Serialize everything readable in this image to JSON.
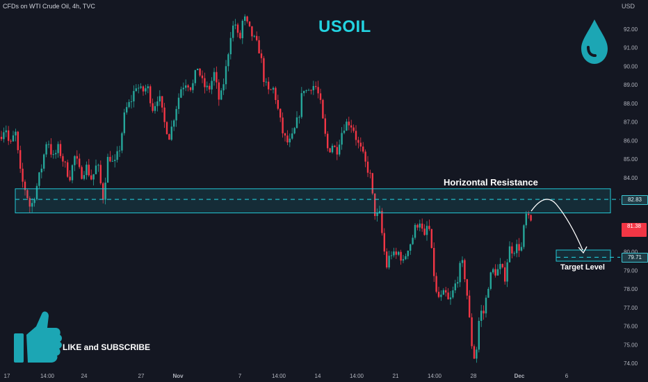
{
  "header": {
    "symbol_title": "CFDs on WTI Crude Oil, 4h, TVC",
    "currency": "USD"
  },
  "annotations": {
    "main_title": "USOIL",
    "resistance_label": "Horizontal Resistance",
    "target_label": "Target Level",
    "subscribe_label": "LIKE and SUBSCRIBE"
  },
  "price_tags": {
    "resistance": "82.83",
    "current_top": "81.38",
    "current_bottom": "",
    "target": "79.71"
  },
  "colors": {
    "background": "#141722",
    "up": "#26a69a",
    "down": "#f23645",
    "zone": "#23c8d6",
    "accent": "#23d3e1"
  },
  "icons": [
    "oil-drop-icon",
    "thumbs-up-icon"
  ],
  "chart_data": {
    "type": "candlestick",
    "title": "USOIL",
    "xlabel": "",
    "ylabel": "USD",
    "ylim": [
      73.7,
      93.4
    ],
    "grid": false,
    "y_ticks": [
      74.0,
      75.0,
      76.0,
      77.0,
      78.0,
      79.0,
      80.0,
      81.0,
      82.0,
      83.0,
      84.0,
      85.0,
      86.0,
      87.0,
      88.0,
      89.0,
      90.0,
      91.0,
      92.0
    ],
    "y_tick_labels": [
      "74.00",
      "75.00",
      "76.00",
      "77.00",
      "78.00",
      "79.00",
      "80.00",
      "",
      "",
      "",
      "84.00",
      "85.00",
      "86.00",
      "87.00",
      "88.00",
      "89.00",
      "90.00",
      "91.00",
      "92.00"
    ],
    "x_tick_labels": [
      "17",
      "14:00",
      "24",
      "27",
      "Nov",
      "7",
      "14:00",
      "14",
      "14:00",
      "21",
      "14:00",
      "28",
      "Dec",
      "6"
    ],
    "price_path": [
      [
        0,
        86.2
      ],
      [
        8,
        86.8
      ],
      [
        14,
        85.6
      ],
      [
        22,
        86.5
      ],
      [
        30,
        84.0
      ],
      [
        38,
        83.2
      ],
      [
        44,
        82.3
      ],
      [
        52,
        83.4
      ],
      [
        60,
        84.6
      ],
      [
        68,
        86.2
      ],
      [
        76,
        85.0
      ],
      [
        84,
        85.6
      ],
      [
        92,
        84.8
      ],
      [
        100,
        84.0
      ],
      [
        108,
        85.2
      ],
      [
        116,
        84.1
      ],
      [
        124,
        84.6
      ],
      [
        132,
        83.9
      ],
      [
        140,
        84.8
      ],
      [
        148,
        82.9
      ],
      [
        156,
        85.3
      ],
      [
        164,
        84.6
      ],
      [
        172,
        85.6
      ],
      [
        180,
        87.6
      ],
      [
        188,
        88.1
      ],
      [
        196,
        89.0
      ],
      [
        204,
        88.6
      ],
      [
        212,
        88.9
      ],
      [
        220,
        87.7
      ],
      [
        228,
        88.5
      ],
      [
        236,
        87.0
      ],
      [
        244,
        86.2
      ],
      [
        252,
        87.6
      ],
      [
        260,
        88.8
      ],
      [
        268,
        89.2
      ],
      [
        276,
        88.8
      ],
      [
        284,
        90.0
      ],
      [
        292,
        89.0
      ],
      [
        300,
        88.7
      ],
      [
        308,
        89.6
      ],
      [
        316,
        88.0
      ],
      [
        324,
        89.6
      ],
      [
        332,
        91.8
      ],
      [
        338,
        92.4
      ],
      [
        344,
        91.2
      ],
      [
        350,
        92.7
      ],
      [
        358,
        92.0
      ],
      [
        366,
        91.4
      ],
      [
        374,
        90.8
      ],
      [
        380,
        89.2
      ],
      [
        386,
        88.6
      ],
      [
        394,
        88.8
      ],
      [
        400,
        87.6
      ],
      [
        406,
        86.5
      ],
      [
        412,
        85.9
      ],
      [
        418,
        85.9
      ],
      [
        424,
        86.6
      ],
      [
        430,
        87.4
      ],
      [
        436,
        88.9
      ],
      [
        442,
        88.6
      ],
      [
        448,
        89.0
      ],
      [
        454,
        88.9
      ],
      [
        460,
        88.2
      ],
      [
        466,
        86.6
      ],
      [
        472,
        85.4
      ],
      [
        478,
        85.8
      ],
      [
        484,
        85.4
      ],
      [
        490,
        86.3
      ],
      [
        496,
        86.9
      ],
      [
        502,
        87.0
      ],
      [
        508,
        86.7
      ],
      [
        514,
        85.9
      ],
      [
        520,
        85.4
      ],
      [
        526,
        84.7
      ],
      [
        532,
        84.2
      ],
      [
        536,
        82.9
      ],
      [
        540,
        81.9
      ],
      [
        546,
        82.0
      ],
      [
        552,
        80.2
      ],
      [
        556,
        79.2
      ],
      [
        562,
        80.0
      ],
      [
        568,
        79.7
      ],
      [
        574,
        80.0
      ],
      [
        580,
        79.4
      ],
      [
        586,
        80.2
      ],
      [
        592,
        80.6
      ],
      [
        598,
        81.4
      ],
      [
        604,
        81.7
      ],
      [
        610,
        80.6
      ],
      [
        616,
        81.7
      ],
      [
        622,
        79.5
      ],
      [
        628,
        77.6
      ],
      [
        634,
        77.5
      ],
      [
        640,
        77.8
      ],
      [
        646,
        77.2
      ],
      [
        652,
        77.9
      ],
      [
        658,
        78.6
      ],
      [
        664,
        79.5
      ],
      [
        670,
        78.4
      ],
      [
        676,
        76.0
      ],
      [
        680,
        74.5
      ],
      [
        684,
        74.2
      ],
      [
        690,
        76.8
      ],
      [
        696,
        76.7
      ],
      [
        702,
        78.2
      ],
      [
        708,
        79.0
      ],
      [
        714,
        78.9
      ],
      [
        720,
        79.2
      ],
      [
        726,
        78.6
      ],
      [
        732,
        80.2
      ],
      [
        738,
        80.1
      ],
      [
        744,
        80.3
      ],
      [
        750,
        80.2
      ],
      [
        756,
        82.0
      ],
      [
        762,
        81.6
      ]
    ],
    "zones": [
      {
        "label": "Horizontal Resistance",
        "low": 82.1,
        "high": 83.4,
        "level": 82.83
      },
      {
        "label": "Target Level",
        "low": 79.5,
        "high": 80.1,
        "level": 79.71
      }
    ]
  }
}
